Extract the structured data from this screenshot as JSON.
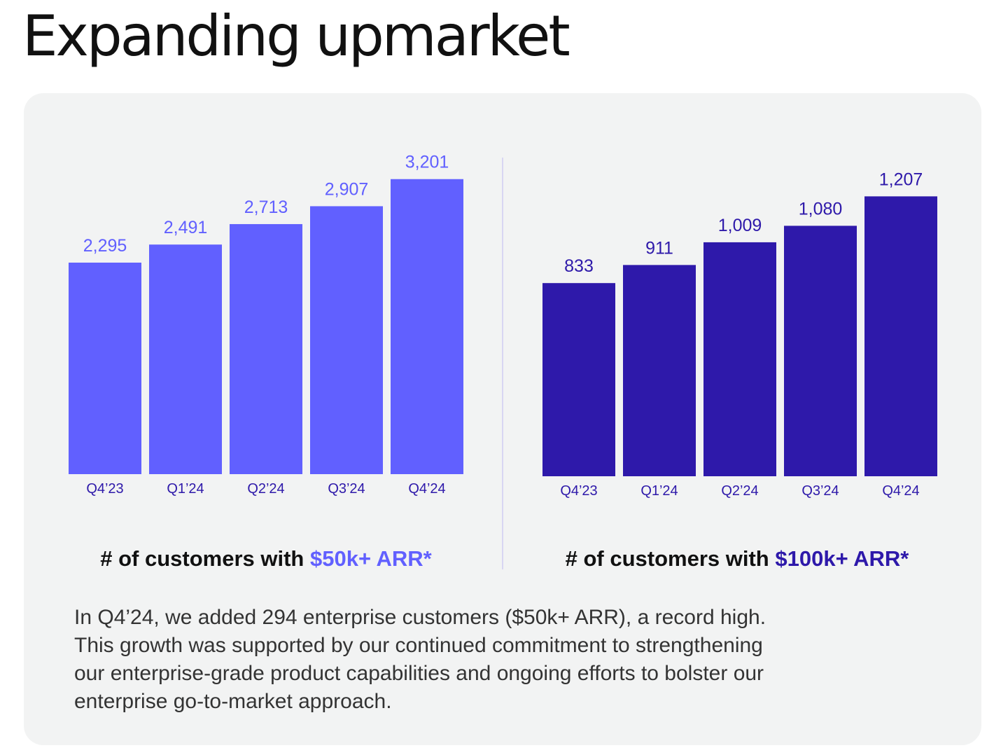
{
  "page": {
    "title": "Expanding upmarket"
  },
  "colors": {
    "chart_left": "#6160ff",
    "chart_right": "#2e19aa",
    "label_left": "#6160ff",
    "label_right": "#2e19aa",
    "tick": "#2e19aa"
  },
  "charts": {
    "left": {
      "title_prefix": "# of customers with ",
      "title_highlight": "$50k+ ARR*"
    },
    "right": {
      "title_prefix": "# of customers with ",
      "title_highlight": "$100k+ ARR*"
    }
  },
  "chart_data": [
    {
      "type": "bar",
      "title": "# of customers with $50k+ ARR*",
      "categories": [
        "Q4’23",
        "Q1’24",
        "Q2’24",
        "Q3’24",
        "Q4’24"
      ],
      "values": [
        2295,
        2491,
        2713,
        2907,
        3201
      ],
      "value_labels": [
        "2,295",
        "2,491",
        "2,713",
        "2,907",
        "3,201"
      ],
      "bar_color": "#6160ff",
      "xlabel": "",
      "ylabel": "",
      "grid": false,
      "legend": "none"
    },
    {
      "type": "bar",
      "title": "# of customers with $100k+ ARR*",
      "categories": [
        "Q4’23",
        "Q1’24",
        "Q2’24",
        "Q3’24",
        "Q4’24"
      ],
      "values": [
        833,
        911,
        1009,
        1080,
        1207
      ],
      "value_labels": [
        "833",
        "911",
        "1,009",
        "1,080",
        "1,207"
      ],
      "bar_color": "#2e19aa",
      "xlabel": "",
      "ylabel": "",
      "grid": false,
      "legend": "none"
    }
  ],
  "summary": {
    "lines": [
      "In Q4’24, we added 294 enterprise customers ($50k+ ARR), a record high.",
      "This growth was supported by our continued commitment to strengthening",
      "our enterprise-grade product capabilities and ongoing efforts to bolster our",
      "enterprise go-to-market approach."
    ]
  }
}
